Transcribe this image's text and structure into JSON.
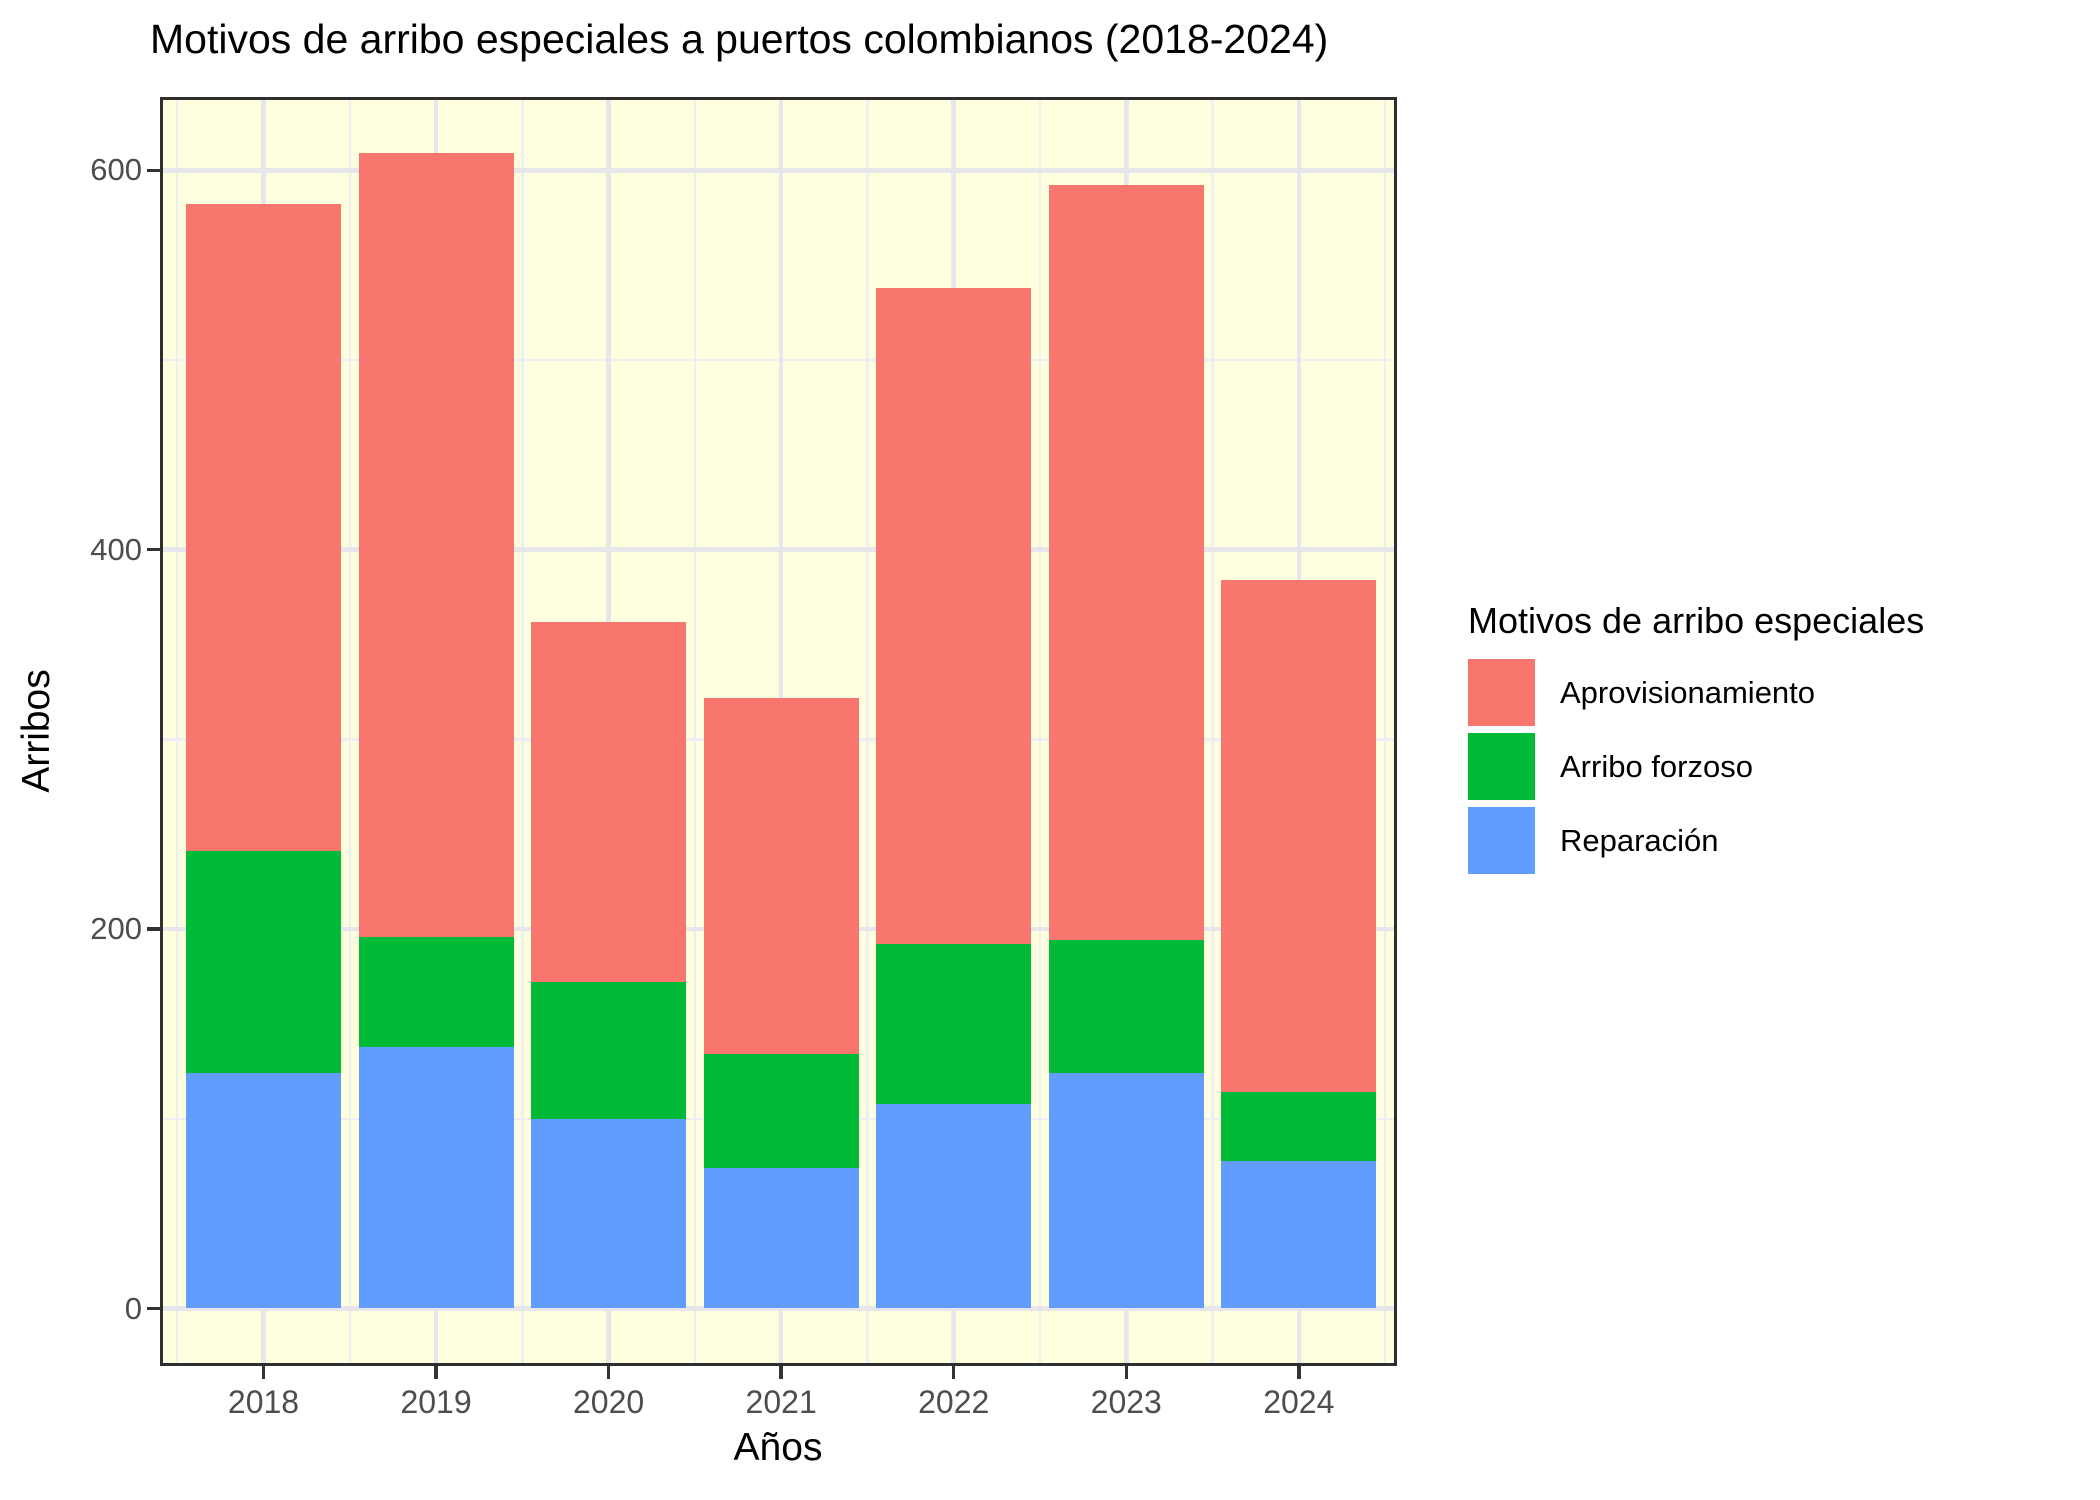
{
  "title": "Motivos de arribo especiales a puertos colombianos (2018-2024)",
  "y_axis": {
    "title": "Arribos",
    "tick_labels": [
      "0",
      "200",
      "400",
      "600"
    ]
  },
  "x_axis": {
    "title": "Años",
    "tick_labels": [
      "2018",
      "2019",
      "2020",
      "2021",
      "2022",
      "2023",
      "2024"
    ]
  },
  "legend": {
    "title": "Motivos de arribo especiales",
    "items": [
      {
        "label": "Aprovisionamiento",
        "color": "#F8766D"
      },
      {
        "label": "Arribo forzoso",
        "color": "#00BA38"
      },
      {
        "label": "Reparación",
        "color": "#619CFF"
      }
    ]
  },
  "chart_data": {
    "type": "bar",
    "stacked": true,
    "title": "Motivos de arribo especiales a puertos colombianos (2018-2024)",
    "xlabel": "Años",
    "ylabel": "Arribos",
    "categories": [
      "2018",
      "2019",
      "2020",
      "2021",
      "2022",
      "2023",
      "2024"
    ],
    "series": [
      {
        "name": "Reparación",
        "color": "#619CFF",
        "values": [
          124,
          138,
          100,
          74,
          108,
          124,
          78
        ]
      },
      {
        "name": "Arribo forzoso",
        "color": "#00BA38",
        "values": [
          117,
          58,
          72,
          60,
          84,
          70,
          36
        ]
      },
      {
        "name": "Aprovisionamiento",
        "color": "#F8766D",
        "values": [
          341,
          413,
          190,
          188,
          346,
          398,
          270
        ]
      }
    ],
    "totals": [
      582,
      609,
      362,
      322,
      538,
      592,
      384
    ],
    "ylim": [
      0,
      640
    ],
    "yticks": [
      0,
      200,
      400,
      600
    ],
    "yticks_minor": [
      100,
      300,
      500
    ],
    "grid": true,
    "legend_title": "Motivos de arribo especiales",
    "legend_position": "right",
    "panel_background": "#FFFFE0",
    "colors": {
      "grid_major": "#E7E6EA",
      "grid_minor": "#EFEEF2",
      "panel_border": "#2e2e2e",
      "tick_text": "#4D4D4D"
    }
  }
}
